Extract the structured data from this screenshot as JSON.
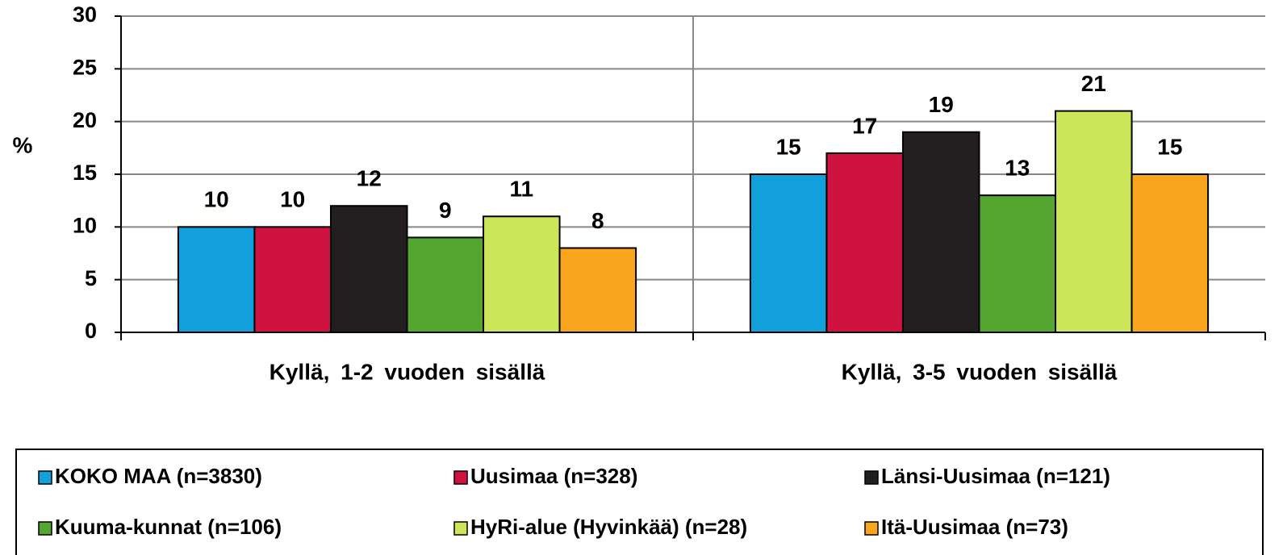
{
  "chart_data": {
    "type": "bar",
    "y_label": "%",
    "categories": [
      "Kyllä, 1-2 vuoden sisällä",
      "Kyllä, 3-5 vuoden sisällä"
    ],
    "series": [
      {
        "name": "KOKO MAA (n=3830)",
        "color": "#12a0dc",
        "values": [
          10,
          15
        ]
      },
      {
        "name": "Uusimaa (n=328)",
        "color": "#d01241",
        "values": [
          10,
          17
        ]
      },
      {
        "name": "Länsi-Uusimaa (n=121)",
        "color": "#231f20",
        "values": [
          12,
          19
        ]
      },
      {
        "name": "Kuuma-kunnat (n=106)",
        "color": "#55a630",
        "values": [
          9,
          13
        ]
      },
      {
        "name": "HyRi-alue (Hyvinkää) (n=28)",
        "color": "#cce65a",
        "values": [
          11,
          21
        ]
      },
      {
        "name": "Itä-Uusimaa (n=73)",
        "color": "#f9a51e",
        "values": [
          8,
          15
        ]
      }
    ],
    "ylim": [
      0,
      30
    ],
    "yticks": [
      0,
      5,
      10,
      15,
      20,
      25,
      30
    ],
    "grid": true,
    "legend": "bottom"
  }
}
